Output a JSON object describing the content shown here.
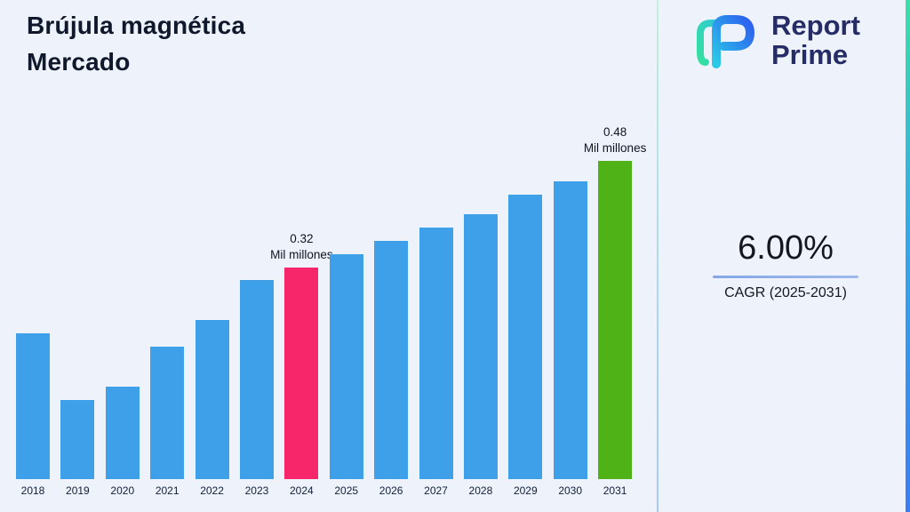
{
  "page": {
    "title_line1": "Brújula magnética",
    "title_line2": "Mercado"
  },
  "brand": {
    "name_line1": "Report",
    "name_line2": "Prime"
  },
  "stats": {
    "cagr_value": "6.00%",
    "cagr_label": "CAGR (2025-2031)"
  },
  "chart_data": {
    "type": "bar",
    "title": "Brújula magnética Mercado",
    "unit": "Mil millones",
    "xlabel": "",
    "ylabel": "",
    "ylim": [
      0,
      0.52
    ],
    "grid": false,
    "legend": false,
    "categories": [
      "2018",
      "2019",
      "2020",
      "2021",
      "2022",
      "2023",
      "2024",
      "2025",
      "2026",
      "2027",
      "2028",
      "2029",
      "2030",
      "2031"
    ],
    "values": [
      0.22,
      0.12,
      0.14,
      0.2,
      0.24,
      0.3,
      0.32,
      0.34,
      0.36,
      0.38,
      0.4,
      0.43,
      0.45,
      0.48
    ],
    "annotations": [
      {
        "category": "2024",
        "lines": [
          "0.32",
          "Mil millones"
        ]
      },
      {
        "category": "2031",
        "lines": [
          "0.48",
          "Mil millones"
        ]
      }
    ],
    "colors": {
      "default": "#3da0e8",
      "by_category": {
        "2024": "#f7256a",
        "2031": "#4fb318"
      }
    }
  }
}
